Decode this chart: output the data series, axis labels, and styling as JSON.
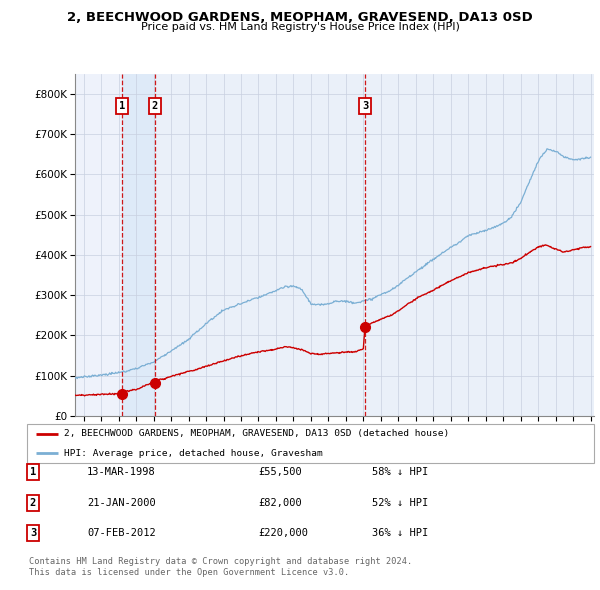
{
  "title": "2, BEECHWOOD GARDENS, MEOPHAM, GRAVESEND, DA13 0SD",
  "subtitle": "Price paid vs. HM Land Registry's House Price Index (HPI)",
  "legend_property": "2, BEECHWOOD GARDENS, MEOPHAM, GRAVESEND, DA13 0SD (detached house)",
  "legend_hpi": "HPI: Average price, detached house, Gravesham",
  "footer1": "Contains HM Land Registry data © Crown copyright and database right 2024.",
  "footer2": "This data is licensed under the Open Government Licence v3.0.",
  "transactions": [
    {
      "num": 1,
      "date": "13-MAR-1998",
      "price": 55500,
      "pct": "58% ↓ HPI",
      "year": 1998.21
    },
    {
      "num": 2,
      "date": "21-JAN-2000",
      "price": 82000,
      "pct": "52% ↓ HPI",
      "year": 2000.06
    },
    {
      "num": 3,
      "date": "07-FEB-2012",
      "price": 220000,
      "pct": "36% ↓ HPI",
      "year": 2012.1
    }
  ],
  "property_color": "#cc0000",
  "hpi_color": "#7bafd4",
  "vline_color": "#cc0000",
  "shade_color": "#ddeeff",
  "ylim_max": 850000,
  "xlim_start": 1995.5,
  "xlim_end": 2025.2
}
